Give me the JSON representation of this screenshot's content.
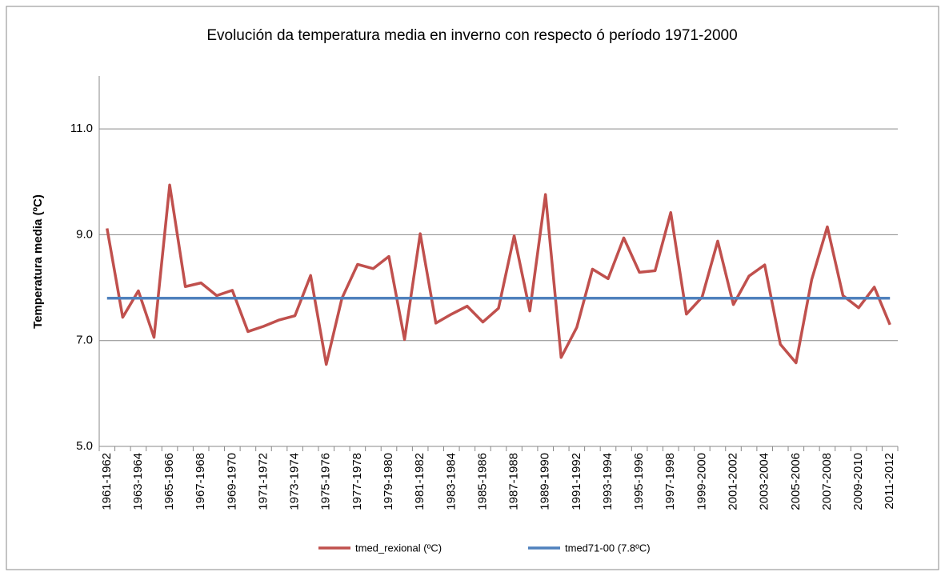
{
  "chart_data": {
    "type": "line",
    "title": "Evolución da temperatura media en inverno con respecto ó período 1971-2000",
    "y_label": "Temperatura media (ºC)",
    "categories": [
      "1961-1962",
      null,
      "1963-1964",
      null,
      "1965-1966",
      null,
      "1967-1968",
      null,
      "1969-1970",
      null,
      "1971-1972",
      null,
      "1973-1974",
      null,
      "1975-1976",
      null,
      "1977-1978",
      null,
      "1979-1980",
      null,
      "1981-1982",
      null,
      "1983-1984",
      null,
      "1985-1986",
      null,
      "1987-1988",
      null,
      "1989-1990",
      null,
      "1991-1992",
      null,
      "1993-1994",
      null,
      "1995-1996",
      null,
      "1997-1998",
      null,
      "1999-2000",
      null,
      "2001-2002",
      null,
      "2003-2004",
      null,
      "2005-2006",
      null,
      "2007-2008",
      null,
      "2009-2010",
      null,
      "2011-2012"
    ],
    "series": [
      {
        "name": "tmed_rexional (ºC)",
        "color": "#c0504d",
        "values": [
          9.12,
          7.44,
          7.94,
          7.06,
          9.94,
          8.02,
          8.09,
          7.85,
          7.95,
          7.17,
          7.27,
          7.39,
          7.47,
          8.23,
          6.55,
          7.8,
          8.44,
          8.36,
          8.59,
          7.02,
          9.02,
          7.33,
          7.5,
          7.65,
          7.35,
          7.61,
          8.98,
          7.56,
          9.76,
          6.68,
          7.25,
          8.35,
          8.17,
          8.94,
          8.29,
          8.32,
          9.42,
          7.5,
          7.82,
          8.88,
          7.68,
          8.22,
          8.43,
          6.93,
          6.58,
          8.15,
          9.15,
          7.85,
          7.62,
          8.01,
          7.3
        ]
      },
      {
        "name": "tmed71-00 (7.8ºC)",
        "color": "#4f81bd",
        "values": [
          7.8,
          7.8,
          7.8,
          7.8,
          7.8,
          7.8,
          7.8,
          7.8,
          7.8,
          7.8,
          7.8,
          7.8,
          7.8,
          7.8,
          7.8,
          7.8,
          7.8,
          7.8,
          7.8,
          7.8,
          7.8,
          7.8,
          7.8,
          7.8,
          7.8,
          7.8,
          7.8,
          7.8,
          7.8,
          7.8,
          7.8,
          7.8,
          7.8,
          7.8,
          7.8,
          7.8,
          7.8,
          7.8,
          7.8,
          7.8,
          7.8,
          7.8,
          7.8,
          7.8,
          7.8,
          7.8,
          7.8,
          7.8,
          7.8,
          7.8,
          7.8
        ]
      }
    ],
    "ylim": [
      5,
      12
    ],
    "yticks": [
      {
        "value": 5,
        "label": "5.0"
      },
      {
        "value": 7,
        "label": "7.0"
      },
      {
        "value": 9,
        "label": "9.0"
      },
      {
        "value": 11,
        "label": "11.0"
      }
    ],
    "grid": true,
    "legend": "bottom"
  }
}
